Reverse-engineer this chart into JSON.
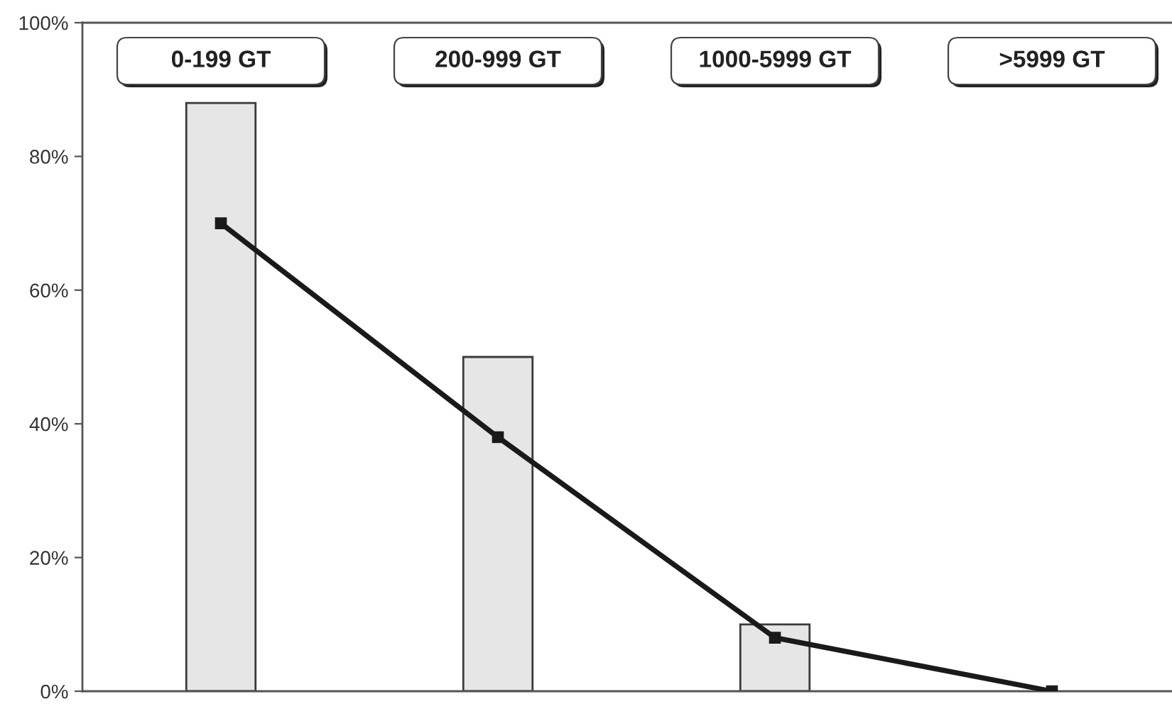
{
  "chart_data": {
    "type": "bar",
    "categories": [
      "0-199 GT",
      "200-999 GT",
      "1000-5999 GT",
      ">5999 GT"
    ],
    "series": [
      {
        "color": "#e6e6e6",
        "values": [
          88,
          50,
          10,
          null
        ]
      },
      {
        "type": "line",
        "color": "#1a1a1a",
        "values": [
          70,
          38,
          8,
          0
        ]
      }
    ],
    "marker": "square",
    "line_style": "solid",
    "ylim": [
      0,
      100
    ],
    "yticks": [
      {
        "value": 0,
        "label": "0%"
      },
      {
        "value": 20,
        "label": "20%"
      },
      {
        "value": 40,
        "label": "40%"
      },
      {
        "value": 60,
        "label": "60%"
      },
      {
        "value": 80,
        "label": "80%"
      },
      {
        "value": 100,
        "label": "100%"
      }
    ]
  }
}
